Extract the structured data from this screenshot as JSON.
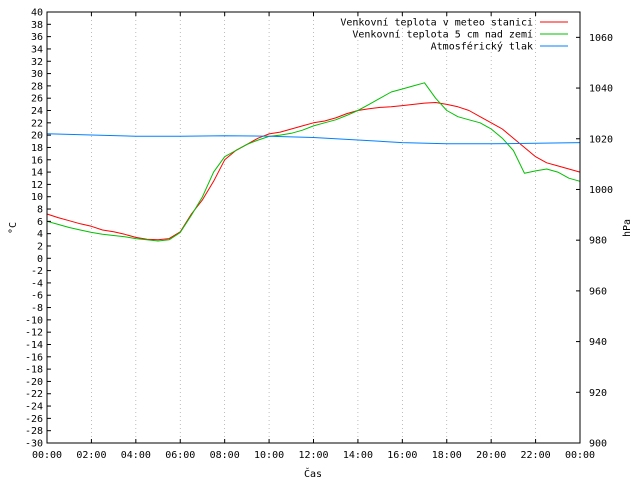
{
  "chart_data": {
    "type": "line",
    "xlabel": "Čas",
    "ylabel_left": "°C",
    "ylabel_right": "hPa",
    "x_ticks": [
      "00:00",
      "02:00",
      "04:00",
      "06:00",
      "08:00",
      "10:00",
      "12:00",
      "14:00",
      "16:00",
      "18:00",
      "20:00",
      "22:00",
      "00:00"
    ],
    "x_range_hours": [
      0,
      24
    ],
    "ylim_left": [
      -30,
      40
    ],
    "ylim_right": [
      900,
      1070
    ],
    "y_ticks_left": [
      40,
      38,
      36,
      34,
      32,
      30,
      28,
      26,
      24,
      22,
      20,
      18,
      16,
      14,
      12,
      10,
      8,
      6,
      4,
      2,
      0,
      -2,
      -4,
      -6,
      -8,
      -10,
      -12,
      -14,
      -16,
      -18,
      -20,
      -22,
      -24,
      -26,
      -28,
      -30
    ],
    "y_ticks_right": [
      1060,
      1040,
      1020,
      1000,
      980,
      960,
      940,
      920,
      900
    ],
    "legend_position": "top-right",
    "series": [
      {
        "name": "Venkovní teplota v meteo stanici",
        "axis": "left",
        "color": "#ff0000",
        "x": [
          0,
          0.5,
          1,
          1.5,
          2,
          2.5,
          3,
          3.5,
          4,
          4.5,
          5,
          5.5,
          6,
          6.5,
          7,
          7.5,
          8,
          8.5,
          9,
          9.5,
          10,
          10.5,
          11,
          11.5,
          12,
          12.5,
          13,
          13.5,
          14,
          14.5,
          15,
          15.5,
          16,
          16.5,
          17,
          17.5,
          18,
          18.5,
          19,
          19.5,
          20,
          20.5,
          21,
          21.5,
          22,
          22.5,
          23,
          23.5,
          24
        ],
        "values": [
          7.2,
          6.6,
          6.1,
          5.6,
          5.2,
          4.6,
          4.3,
          3.9,
          3.4,
          3.1,
          3.0,
          3.2,
          4.3,
          7.2,
          9.5,
          12.5,
          16.0,
          17.5,
          18.5,
          19.5,
          20.2,
          20.5,
          21.0,
          21.5,
          22.0,
          22.3,
          22.8,
          23.5,
          24.0,
          24.3,
          24.5,
          24.6,
          24.8,
          25.0,
          25.2,
          25.3,
          25.0,
          24.6,
          24.0,
          23.0,
          22.0,
          21.0,
          19.5,
          18.0,
          16.5,
          15.5,
          15.0,
          14.5,
          14.0
        ]
      },
      {
        "name": "Venkovní teplota 5 cm nad zemí",
        "axis": "left",
        "color": "#00c000",
        "x": [
          0,
          0.5,
          1,
          1.5,
          2,
          2.5,
          3,
          3.5,
          4,
          4.5,
          5,
          5.5,
          6,
          6.5,
          7,
          7.5,
          8,
          8.5,
          9,
          9.5,
          10,
          10.5,
          11,
          11.5,
          12,
          12.5,
          13,
          13.5,
          14,
          14.5,
          15,
          15.5,
          16,
          16.5,
          17,
          17.5,
          18,
          18.5,
          19,
          19.5,
          20,
          20.5,
          21,
          21.5,
          22,
          22.5,
          23,
          23.5,
          24
        ],
        "values": [
          6.0,
          5.5,
          5.0,
          4.6,
          4.2,
          3.9,
          3.7,
          3.5,
          3.2,
          3.0,
          2.8,
          3.0,
          4.2,
          7.0,
          10.0,
          14.0,
          16.5,
          17.5,
          18.5,
          19.2,
          19.8,
          20.0,
          20.3,
          20.8,
          21.5,
          22.0,
          22.5,
          23.2,
          24.0,
          25.0,
          26.0,
          27.0,
          27.5,
          28.0,
          28.5,
          26.0,
          24.0,
          23.0,
          22.5,
          22.0,
          21.0,
          19.5,
          17.5,
          13.8,
          14.2,
          14.5,
          14.0,
          13.0,
          12.5
        ]
      },
      {
        "name": "Atmosférický tlak",
        "axis": "right",
        "color": "#0080ff",
        "x": [
          0,
          2,
          4,
          6,
          8,
          10,
          12,
          14,
          16,
          18,
          20,
          22,
          24
        ],
        "values": [
          1022.0,
          1021.5,
          1021.0,
          1021.0,
          1021.2,
          1021.0,
          1020.5,
          1019.5,
          1018.5,
          1018.0,
          1018.0,
          1018.2,
          1018.5
        ]
      }
    ]
  }
}
